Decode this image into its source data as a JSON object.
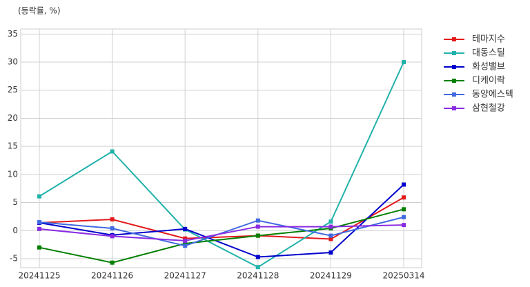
{
  "chart_data": {
    "type": "line",
    "y_label": "(등락률, %)",
    "categories": [
      "20241125",
      "20241126",
      "20241127",
      "20241128",
      "20241129",
      "20250314"
    ],
    "ylim": [
      -6.6,
      35.9
    ],
    "yticks": [
      -5,
      0,
      5,
      10,
      15,
      20,
      25,
      30,
      35
    ],
    "grid": true,
    "legend": "outside-right",
    "series": [
      {
        "name": "테마지수",
        "color": "#e31a1c",
        "values": [
          1.4,
          2.0,
          -1.4,
          -0.9,
          -1.5,
          5.9
        ]
      },
      {
        "name": "대동스틸",
        "color": "#20b2aa",
        "values": [
          6.1,
          14.1,
          0.2,
          -6.5,
          1.6,
          30.0
        ]
      },
      {
        "name": "화성밸브",
        "color": "#0000cd",
        "values": [
          1.4,
          -0.8,
          0.3,
          -4.7,
          -3.9,
          8.2
        ]
      },
      {
        "name": "디케이락",
        "color": "#008000",
        "values": [
          -3.0,
          -5.7,
          -2.3,
          -0.9,
          0.4,
          3.8
        ]
      },
      {
        "name": "동양에스텍",
        "color": "#4169e1",
        "values": [
          1.5,
          0.4,
          -2.7,
          1.8,
          -0.9,
          2.4
        ]
      },
      {
        "name": "삼현철강",
        "color": "#8a2be2",
        "values": [
          0.3,
          -1.0,
          -1.8,
          0.7,
          0.7,
          1.0
        ]
      }
    ]
  }
}
